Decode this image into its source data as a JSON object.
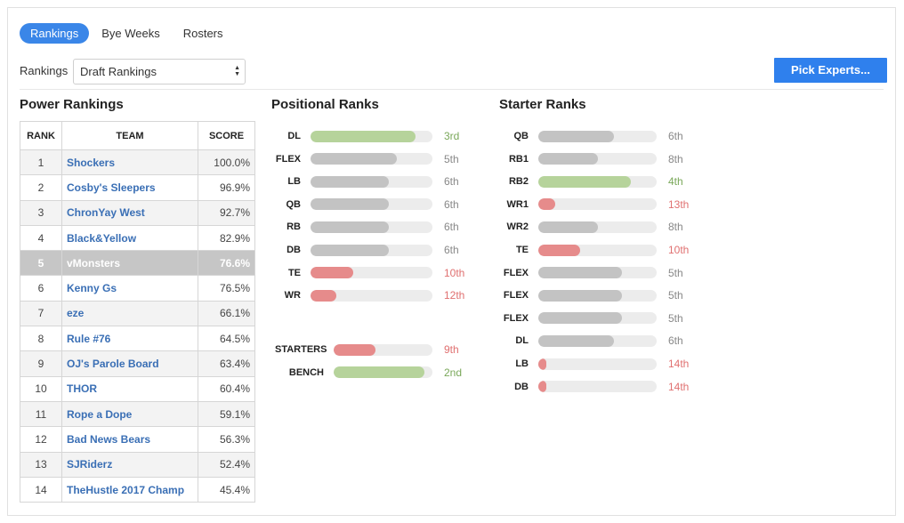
{
  "tabs": [
    {
      "label": "Rankings",
      "active": true
    },
    {
      "label": "Bye Weeks",
      "active": false
    },
    {
      "label": "Rosters",
      "active": false
    }
  ],
  "selector": {
    "label": "Rankings",
    "value": "Draft Rankings"
  },
  "pick_button": "Pick Experts...",
  "colors": {
    "green": "#b6d39b",
    "gray": "#c3c3c3",
    "red": "#e68b8b",
    "accent": "#2f80ed",
    "green_text": "#7aa85a",
    "gray_text": "#888888",
    "red_text": "#e07070"
  },
  "power": {
    "title": "Power Rankings",
    "headers": [
      "RANK",
      "TEAM",
      "SCORE"
    ],
    "rows": [
      {
        "rank": "1",
        "team": "Shockers",
        "score": "100.0%"
      },
      {
        "rank": "2",
        "team": "Cosby's Sleepers",
        "score": "96.9%"
      },
      {
        "rank": "3",
        "team": "ChronYay West",
        "score": "92.7%"
      },
      {
        "rank": "4",
        "team": "Black&Yellow",
        "score": "82.9%"
      },
      {
        "rank": "5",
        "team": "vMonsters",
        "score": "76.6%"
      },
      {
        "rank": "6",
        "team": "Kenny Gs",
        "score": "76.5%"
      },
      {
        "rank": "7",
        "team": "eze",
        "score": "66.1%"
      },
      {
        "rank": "8",
        "team": "Rule #76",
        "score": "64.5%"
      },
      {
        "rank": "9",
        "team": "OJ's Parole Board",
        "score": "63.4%"
      },
      {
        "rank": "10",
        "team": "THOR",
        "score": "60.4%"
      },
      {
        "rank": "11",
        "team": "Rope a Dope",
        "score": "59.1%"
      },
      {
        "rank": "12",
        "team": "Bad News Bears",
        "score": "56.3%"
      },
      {
        "rank": "13",
        "team": "SJRiderz",
        "score": "52.4%"
      },
      {
        "rank": "14",
        "team": "TheHustle 2017 Champ",
        "score": "45.4%"
      }
    ],
    "highlight_rank": "5"
  },
  "positional": {
    "title": "Positional Ranks",
    "rows": [
      {
        "pos": "DL",
        "level": 0.86,
        "rank": "3rd",
        "tone": "green"
      },
      {
        "pos": "FLEX",
        "level": 0.71,
        "rank": "5th",
        "tone": "gray"
      },
      {
        "pos": "LB",
        "level": 0.64,
        "rank": "6th",
        "tone": "gray"
      },
      {
        "pos": "QB",
        "level": 0.64,
        "rank": "6th",
        "tone": "gray"
      },
      {
        "pos": "RB",
        "level": 0.64,
        "rank": "6th",
        "tone": "gray"
      },
      {
        "pos": "DB",
        "level": 0.64,
        "rank": "6th",
        "tone": "gray"
      },
      {
        "pos": "TE",
        "level": 0.35,
        "rank": "10th",
        "tone": "red"
      },
      {
        "pos": "WR",
        "level": 0.21,
        "rank": "12th",
        "tone": "red"
      }
    ],
    "summary": [
      {
        "pos": "STARTERS",
        "level": 0.42,
        "rank": "9th",
        "tone": "red"
      },
      {
        "pos": "BENCH",
        "level": 0.92,
        "rank": "2nd",
        "tone": "green"
      }
    ]
  },
  "starter": {
    "title": "Starter Ranks",
    "rows": [
      {
        "pos": "QB",
        "level": 0.64,
        "rank": "6th",
        "tone": "gray"
      },
      {
        "pos": "RB1",
        "level": 0.5,
        "rank": "8th",
        "tone": "gray"
      },
      {
        "pos": "RB2",
        "level": 0.78,
        "rank": "4th",
        "tone": "green"
      },
      {
        "pos": "WR1",
        "level": 0.14,
        "rank": "13th",
        "tone": "red"
      },
      {
        "pos": "WR2",
        "level": 0.5,
        "rank": "8th",
        "tone": "gray"
      },
      {
        "pos": "TE",
        "level": 0.35,
        "rank": "10th",
        "tone": "red"
      },
      {
        "pos": "FLEX",
        "level": 0.71,
        "rank": "5th",
        "tone": "gray"
      },
      {
        "pos": "FLEX",
        "level": 0.71,
        "rank": "5th",
        "tone": "gray"
      },
      {
        "pos": "FLEX",
        "level": 0.71,
        "rank": "5th",
        "tone": "gray"
      },
      {
        "pos": "DL",
        "level": 0.64,
        "rank": "6th",
        "tone": "gray"
      },
      {
        "pos": "LB",
        "level": 0.07,
        "rank": "14th",
        "tone": "red"
      },
      {
        "pos": "DB",
        "level": 0.07,
        "rank": "14th",
        "tone": "red"
      }
    ]
  }
}
